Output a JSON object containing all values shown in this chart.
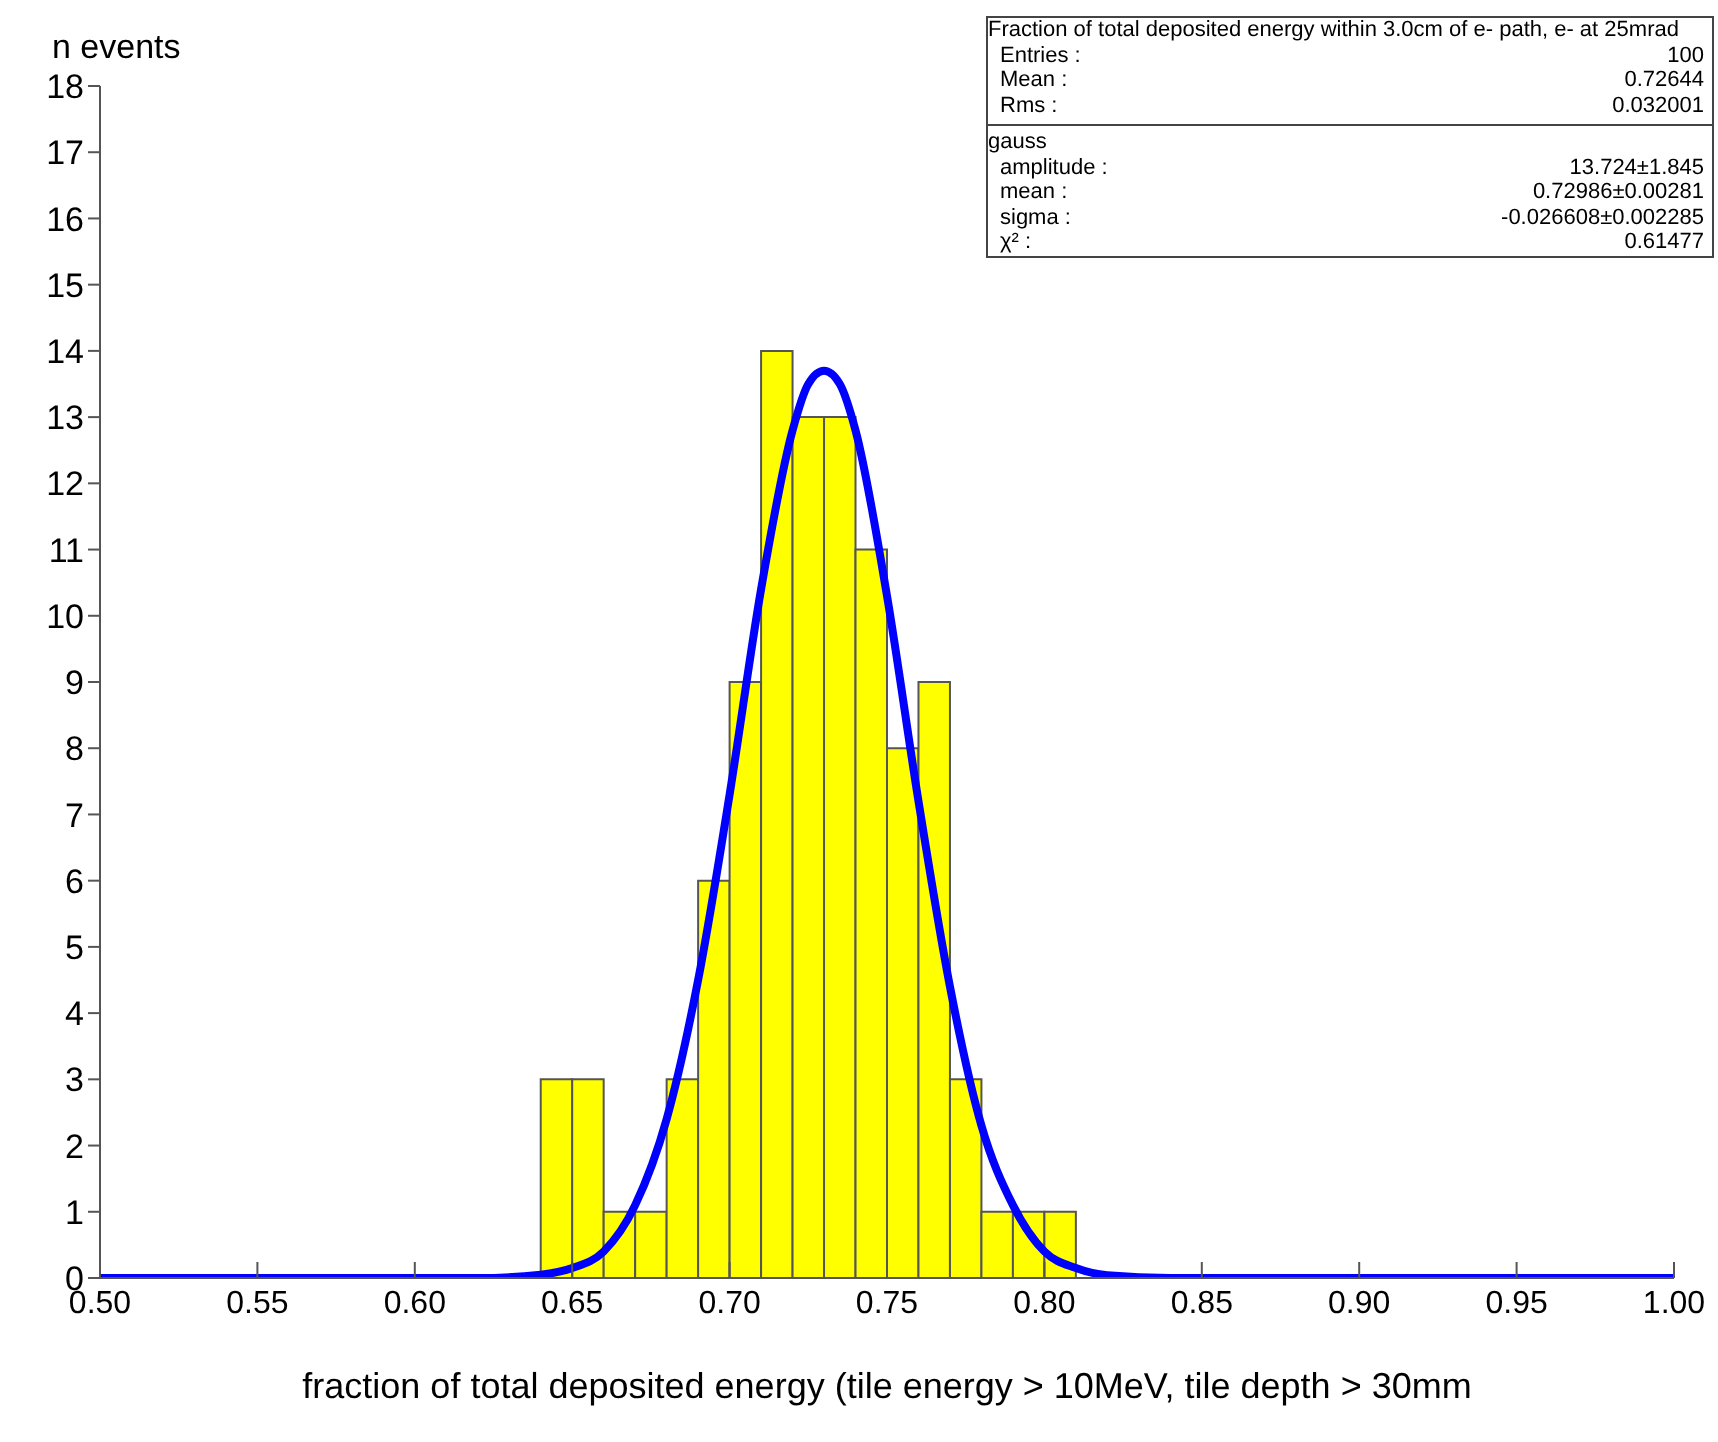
{
  "chart_data": {
    "type": "histogram",
    "xlabel": "fraction of total deposited energy (tile energy > 10MeV, tile depth > 30mm",
    "ylabel": "n events",
    "bins": [
      0.64,
      0.65,
      0.66,
      0.67,
      0.68,
      0.69,
      0.7,
      0.71,
      0.72,
      0.73,
      0.74,
      0.75,
      0.76,
      0.77,
      0.78,
      0.79,
      0.8,
      0.81
    ],
    "values": [
      3,
      3,
      1,
      1,
      3,
      6,
      9,
      14,
      13,
      13,
      11,
      8,
      9,
      3,
      1,
      1,
      1
    ],
    "color": "#ffff00",
    "series": [
      {
        "type": "line",
        "color": "#0000ff",
        "x": [
          0.5,
          0.6,
          0.62,
          0.64,
          0.65,
          0.66,
          0.67,
          0.68,
          0.69,
          0.7,
          0.71,
          0.72,
          0.725,
          0.73,
          0.735,
          0.74,
          0.75,
          0.76,
          0.77,
          0.78,
          0.79,
          0.8,
          0.81,
          0.82,
          0.84,
          0.9,
          1.0
        ],
        "values": [
          0,
          0,
          0,
          0.05,
          0.15,
          0.4,
          1.1,
          2.4,
          4.5,
          7.3,
          10.4,
          12.8,
          13.5,
          13.7,
          13.5,
          12.8,
          10.3,
          7.2,
          4.4,
          2.3,
          1.1,
          0.4,
          0.15,
          0.04,
          0,
          0,
          0
        ]
      }
    ],
    "xlim": [
      0.5,
      1.0
    ],
    "xticks": [
      {
        "value": 0.5,
        "label": "0.50"
      },
      {
        "value": 0.55,
        "label": "0.55"
      },
      {
        "value": 0.6,
        "label": "0.60"
      },
      {
        "value": 0.65,
        "label": "0.65"
      },
      {
        "value": 0.7,
        "label": "0.70"
      },
      {
        "value": 0.75,
        "label": "0.75"
      },
      {
        "value": 0.8,
        "label": "0.80"
      },
      {
        "value": 0.85,
        "label": "0.85"
      },
      {
        "value": 0.9,
        "label": "0.90"
      },
      {
        "value": 0.95,
        "label": "0.95"
      },
      {
        "value": 1.0,
        "label": "1.00"
      }
    ],
    "ylim": [
      0,
      18
    ],
    "yticks": [
      0,
      1,
      2,
      3,
      4,
      5,
      6,
      7,
      8,
      9,
      10,
      11,
      12,
      13,
      14,
      15,
      16,
      17,
      18
    ],
    "annotations": [
      "Fraction of total deposited energy within 3.0cm of e- path, e- at 25mrad",
      "Entries :",
      "100",
      "Mean :",
      "0.72644",
      "Rms :",
      "0.032001",
      "gauss",
      "amplitude :",
      "13.724±1.845",
      "mean :",
      "0.72986±0.00281",
      "sigma :",
      "-0.026608±0.002285",
      "χ² :",
      "0.61477"
    ],
    "grid": false,
    "legend": false
  }
}
